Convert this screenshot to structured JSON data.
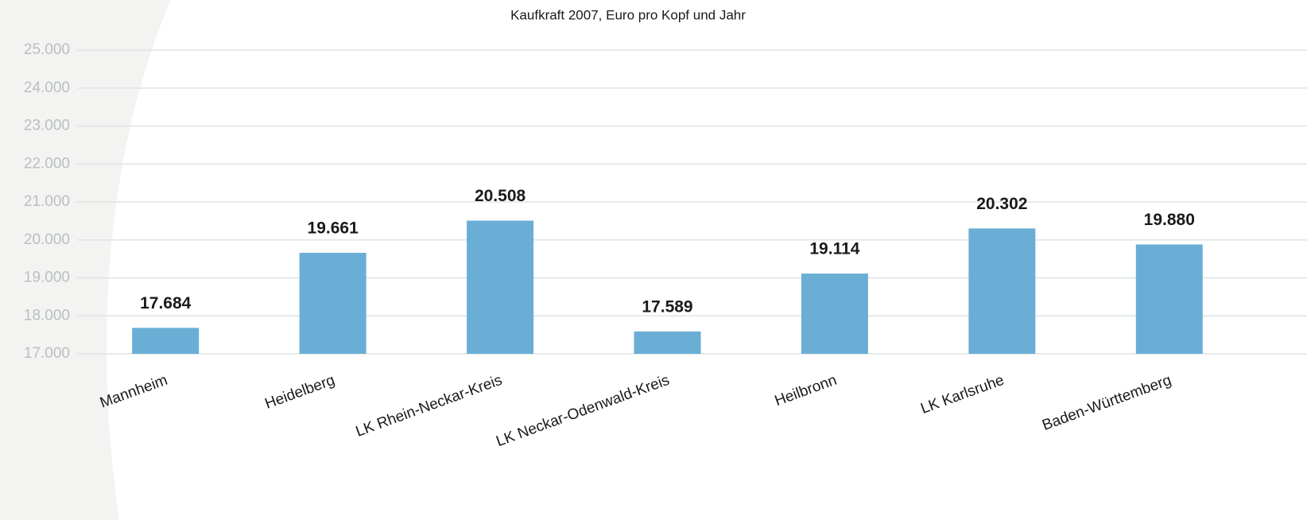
{
  "chart_data": {
    "type": "bar",
    "title": "Kaufkraft 2007, Euro pro Kopf und Jahr",
    "categories": [
      "Mannheim",
      "Heidelberg",
      "LK Rhein-Neckar-Kreis",
      "LK Neckar-Odenwald-Kreis",
      "Heilbronn",
      "LK Karlsruhe",
      "Baden-Württemberg"
    ],
    "values": [
      17684,
      19661,
      20508,
      17589,
      19114,
      20302,
      19880
    ],
    "value_labels": [
      "17.684",
      "19.661",
      "20.508",
      "17.589",
      "19.114",
      "20.302",
      "19.880"
    ],
    "color": "#6aaed6",
    "ylim": [
      17000,
      25000
    ],
    "yticks": [
      {
        "value": 17000,
        "label": "17.000"
      },
      {
        "value": 18000,
        "label": "18.000"
      },
      {
        "value": 19000,
        "label": "19.000"
      },
      {
        "value": 20000,
        "label": "20.000"
      },
      {
        "value": 21000,
        "label": "21.000"
      },
      {
        "value": 22000,
        "label": "22.000"
      },
      {
        "value": 23000,
        "label": "23.000"
      },
      {
        "value": 24000,
        "label": "24.000"
      },
      {
        "value": 25000,
        "label": "25.000"
      }
    ],
    "grid": true
  }
}
